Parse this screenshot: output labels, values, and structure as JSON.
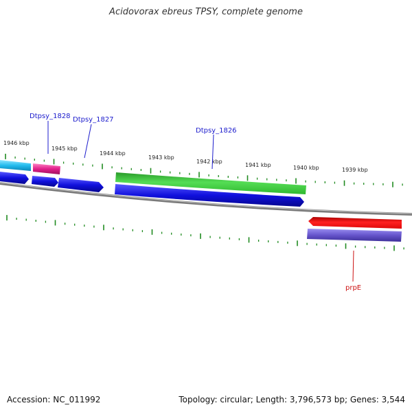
{
  "title": "Acidovorax ebreus TPSY, complete genome",
  "footer": {
    "accession": "Accession: NC_011992",
    "summary": "Topology: circular; Length: 3,796,573 bp; Genes: 3,544"
  },
  "ticks": [
    "1946 kbp",
    "1945 kbp",
    "1944 kbp",
    "1943 kbp",
    "1942 kbp",
    "1941 kbp",
    "1940 kbp",
    "1939 kbp"
  ],
  "gene_labels": {
    "dtpsy1828": "Dtpsy_1828",
    "dtpsy1827": "Dtpsy_1827",
    "dtpsy1826": "Dtpsy_1826",
    "prpE": "prpE"
  },
  "colors": {
    "cyan": "#22bbee",
    "magenta": "#e0208a",
    "blue": "#1010dd",
    "green": "#33cc33",
    "red": "#ee1111",
    "purple": "#6655cc",
    "tick_green": "#1f8a1f",
    "backbone": "#888888",
    "label_blue": "#1a1acc",
    "label_red": "#cc1111"
  }
}
